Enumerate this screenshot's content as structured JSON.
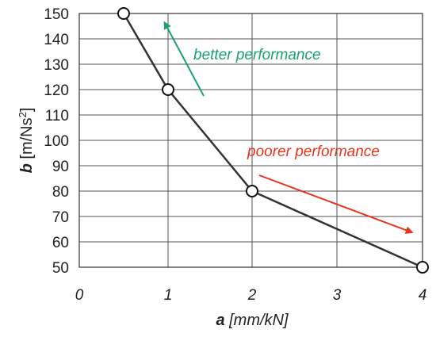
{
  "chart_data": {
    "type": "line",
    "title": "",
    "xlabel": {
      "symbol": "a",
      "unit": " [mm/kN]"
    },
    "ylabel": {
      "symbol": "b",
      "unit_pre": " [m/Ns",
      "unit_sup": "2",
      "unit_post": "]"
    },
    "x_tick_labels": [
      "0",
      "1",
      "2",
      "3",
      "4"
    ],
    "y_tick_labels": [
      "50",
      "60",
      "70",
      "80",
      "90",
      "100",
      "110",
      "120",
      "130",
      "140",
      "150"
    ],
    "ylim": [
      50,
      150
    ],
    "grid": true,
    "series": [
      {
        "points": [
          {
            "x": 0.5,
            "y": 150
          },
          {
            "x": 1,
            "y": 120
          },
          {
            "x": 2,
            "y": 80
          },
          {
            "x": 4,
            "y": 50
          }
        ],
        "color": "#333333",
        "marker": "hollow-circle"
      }
    ],
    "annotations": [
      {
        "text": "better performance",
        "color": "#1aa36b",
        "arrow_direction": "up-left"
      },
      {
        "text": "poorer performance",
        "color": "#e8341c",
        "arrow_direction": "down-right"
      }
    ]
  }
}
